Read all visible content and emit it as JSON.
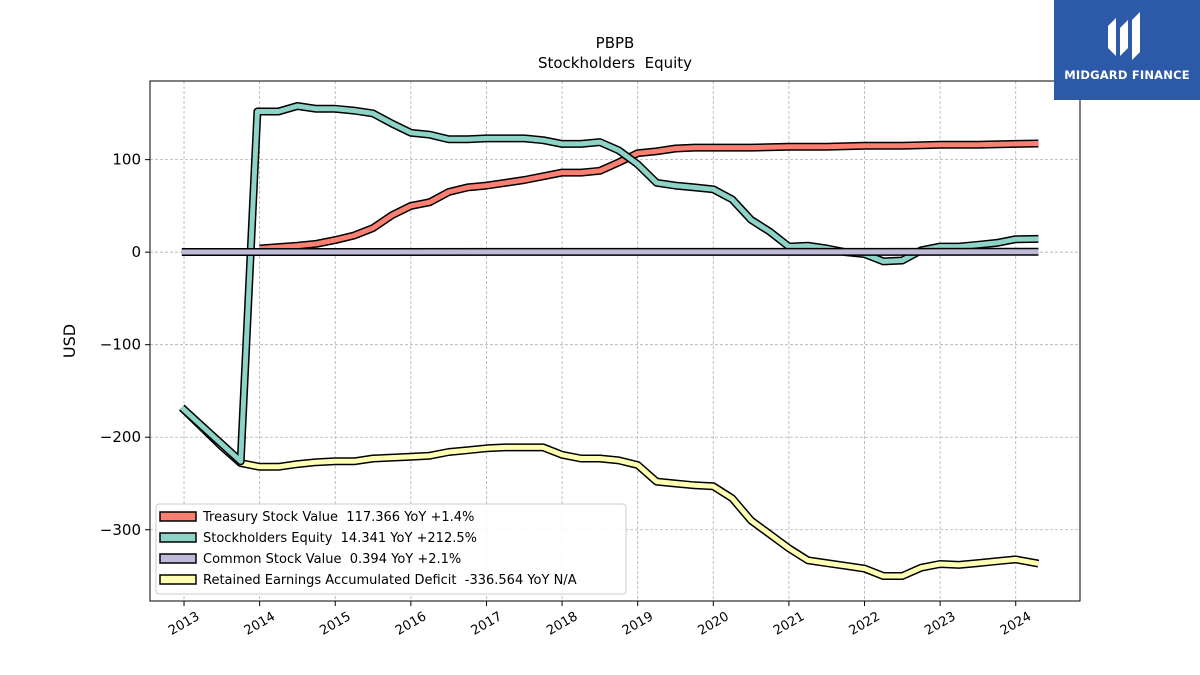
{
  "branding": {
    "logo_text": "MIDGARD FINANCE",
    "color": "#2d5aa8"
  },
  "chart_data": {
    "type": "line",
    "title": "PBPB",
    "subtitle": "Stockholders  Equity",
    "ylabel": "USD",
    "xlabel": "",
    "xlim": [
      2012.55,
      2024.85
    ],
    "ylim": [
      -377,
      185
    ],
    "grid": true,
    "legend_position": "lower-left",
    "x_ticks": [
      2013,
      2014,
      2015,
      2016,
      2017,
      2018,
      2019,
      2020,
      2021,
      2022,
      2023,
      2024
    ],
    "x_tick_labels": [
      "2013",
      "2014",
      "2015",
      "2016",
      "2017",
      "2018",
      "2019",
      "2020",
      "2021",
      "2022",
      "2023",
      "2024"
    ],
    "y_ticks": [
      100,
      0,
      -100,
      -200,
      -300
    ],
    "y_tick_labels": [
      "100",
      "0",
      "−100",
      "−200",
      "−300"
    ],
    "series": [
      {
        "name": "Treasury Stock Value  117.366 YoY +1.4%",
        "color": "#fb8072",
        "points": [
          [
            2014.0,
            4
          ],
          [
            2014.5,
            7
          ],
          [
            2014.75,
            9
          ],
          [
            2015.0,
            13
          ],
          [
            2015.25,
            18
          ],
          [
            2015.5,
            26
          ],
          [
            2015.75,
            40
          ],
          [
            2016.0,
            50
          ],
          [
            2016.25,
            54
          ],
          [
            2016.5,
            65
          ],
          [
            2016.75,
            70
          ],
          [
            2017.0,
            72
          ],
          [
            2017.25,
            75
          ],
          [
            2017.5,
            78
          ],
          [
            2017.75,
            82
          ],
          [
            2018.0,
            86
          ],
          [
            2018.25,
            86
          ],
          [
            2018.5,
            88
          ],
          [
            2018.75,
            97
          ],
          [
            2019.0,
            107
          ],
          [
            2019.25,
            109
          ],
          [
            2019.5,
            112
          ],
          [
            2019.75,
            113
          ],
          [
            2020.0,
            113
          ],
          [
            2020.5,
            113
          ],
          [
            2021.0,
            114
          ],
          [
            2021.25,
            114
          ],
          [
            2021.5,
            114
          ],
          [
            2022.0,
            115
          ],
          [
            2022.5,
            115
          ],
          [
            2023.0,
            116
          ],
          [
            2023.5,
            116
          ],
          [
            2024.0,
            117
          ],
          [
            2024.3,
            117.4
          ]
        ]
      },
      {
        "name": "Stockholders Equity  14.341 YoY +212.5%",
        "color": "#8dd3c7",
        "points": [
          [
            2012.97,
            -168
          ],
          [
            2013.75,
            -226
          ],
          [
            2013.97,
            152
          ],
          [
            2014.25,
            152
          ],
          [
            2014.5,
            158
          ],
          [
            2014.75,
            155
          ],
          [
            2015.0,
            155
          ],
          [
            2015.25,
            153
          ],
          [
            2015.5,
            150
          ],
          [
            2015.75,
            139
          ],
          [
            2016.0,
            129
          ],
          [
            2016.25,
            127
          ],
          [
            2016.5,
            122
          ],
          [
            2016.75,
            122
          ],
          [
            2017.0,
            123
          ],
          [
            2017.25,
            123
          ],
          [
            2017.5,
            123
          ],
          [
            2017.75,
            121
          ],
          [
            2018.0,
            117
          ],
          [
            2018.25,
            117
          ],
          [
            2018.5,
            119
          ],
          [
            2018.75,
            110
          ],
          [
            2019.0,
            95
          ],
          [
            2019.25,
            75
          ],
          [
            2019.5,
            72
          ],
          [
            2019.75,
            70
          ],
          [
            2020.0,
            68
          ],
          [
            2020.25,
            57
          ],
          [
            2020.5,
            35
          ],
          [
            2020.75,
            22
          ],
          [
            2021.0,
            6
          ],
          [
            2021.25,
            7
          ],
          [
            2021.5,
            4
          ],
          [
            2021.75,
            0
          ],
          [
            2022.0,
            -2
          ],
          [
            2022.25,
            -10
          ],
          [
            2022.5,
            -9
          ],
          [
            2022.75,
            2
          ],
          [
            2023.0,
            6
          ],
          [
            2023.25,
            6
          ],
          [
            2023.5,
            8
          ],
          [
            2023.75,
            10
          ],
          [
            2024.0,
            14
          ],
          [
            2024.3,
            14.3
          ]
        ]
      },
      {
        "name": "Common Stock Value  0.394 YoY +2.1%",
        "color": "#bebada",
        "points": [
          [
            2012.97,
            0.2
          ],
          [
            2024.3,
            0.394
          ]
        ]
      },
      {
        "name": "Retained Earnings Accumulated Deficit  -336.564 YoY N/A",
        "color": "#ffffb3",
        "points": [
          [
            2012.97,
            -168
          ],
          [
            2013.5,
            -210
          ],
          [
            2013.75,
            -228
          ],
          [
            2014.0,
            -232
          ],
          [
            2014.25,
            -232
          ],
          [
            2014.5,
            -229
          ],
          [
            2014.75,
            -227
          ],
          [
            2015.0,
            -226
          ],
          [
            2015.25,
            -226
          ],
          [
            2015.5,
            -223
          ],
          [
            2015.75,
            -222
          ],
          [
            2016.0,
            -221
          ],
          [
            2016.25,
            -220
          ],
          [
            2016.5,
            -216
          ],
          [
            2016.75,
            -214
          ],
          [
            2017.0,
            -212
          ],
          [
            2017.25,
            -211
          ],
          [
            2017.5,
            -211
          ],
          [
            2017.75,
            -211
          ],
          [
            2018.0,
            -219
          ],
          [
            2018.25,
            -223
          ],
          [
            2018.5,
            -223
          ],
          [
            2018.75,
            -225
          ],
          [
            2019.0,
            -230
          ],
          [
            2019.25,
            -248
          ],
          [
            2019.5,
            -250
          ],
          [
            2019.75,
            -252
          ],
          [
            2020.0,
            -253
          ],
          [
            2020.25,
            -266
          ],
          [
            2020.5,
            -290
          ],
          [
            2020.75,
            -305
          ],
          [
            2021.0,
            -320
          ],
          [
            2021.25,
            -333
          ],
          [
            2021.5,
            -336
          ],
          [
            2021.75,
            -339
          ],
          [
            2022.0,
            -342
          ],
          [
            2022.25,
            -350
          ],
          [
            2022.5,
            -350
          ],
          [
            2022.75,
            -341
          ],
          [
            2023.0,
            -337
          ],
          [
            2023.25,
            -338
          ],
          [
            2023.5,
            -336
          ],
          [
            2023.75,
            -334
          ],
          [
            2024.0,
            -332
          ],
          [
            2024.3,
            -336.6
          ]
        ]
      }
    ]
  }
}
